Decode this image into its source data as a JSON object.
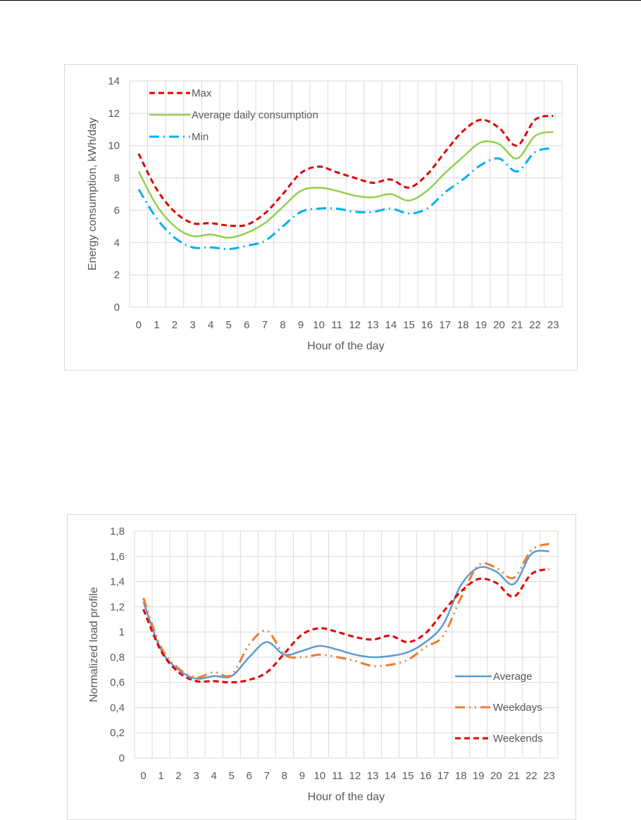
{
  "chart_data": [
    {
      "type": "line",
      "title": "",
      "xlabel": "Hour of the day",
      "ylabel": "Energy consumption, kWh/day",
      "x": [
        "0",
        "1",
        "2",
        "3",
        "4",
        "5",
        "6",
        "7",
        "8",
        "9",
        "10",
        "11",
        "12",
        "13",
        "14",
        "15",
        "16",
        "17",
        "18",
        "19",
        "20",
        "21",
        "22",
        "23"
      ],
      "ylim": [
        0,
        14
      ],
      "yticks": [
        0,
        2,
        4,
        6,
        8,
        10,
        12,
        14
      ],
      "ytick_labels": [
        "0",
        "2",
        "4",
        "6",
        "8",
        "10",
        "12",
        "14"
      ],
      "grid": true,
      "legend_position": "top-left",
      "series": [
        {
          "name": "Max",
          "color": "#e00000",
          "dash": "dashed",
          "values": [
            9.5,
            7.3,
            5.9,
            5.2,
            5.2,
            5.05,
            5.1,
            5.8,
            7.0,
            8.3,
            8.7,
            8.35,
            8.0,
            7.7,
            7.9,
            7.4,
            8.2,
            9.6,
            10.9,
            11.6,
            11.1,
            10.0,
            11.6,
            11.85
          ]
        },
        {
          "name": "Average daily consumption",
          "color": "#92d050",
          "dash": "solid",
          "values": [
            8.4,
            6.3,
            5.0,
            4.4,
            4.5,
            4.3,
            4.6,
            5.2,
            6.2,
            7.2,
            7.4,
            7.2,
            6.9,
            6.8,
            7.0,
            6.6,
            7.2,
            8.3,
            9.3,
            10.2,
            10.1,
            9.2,
            10.6,
            10.85
          ]
        },
        {
          "name": "Min",
          "color": "#00b0f0",
          "dash": "dashdot",
          "values": [
            7.3,
            5.5,
            4.3,
            3.7,
            3.7,
            3.6,
            3.8,
            4.1,
            5.0,
            5.9,
            6.1,
            6.1,
            5.9,
            5.9,
            6.1,
            5.8,
            6.1,
            7.1,
            7.9,
            8.8,
            9.2,
            8.4,
            9.6,
            9.85
          ]
        }
      ]
    },
    {
      "type": "line",
      "title": "",
      "xlabel": "Hour of the day",
      "ylabel": "Normalized load profile",
      "x": [
        "0",
        "1",
        "2",
        "3",
        "4",
        "5",
        "6",
        "7",
        "8",
        "9",
        "10",
        "11",
        "12",
        "13",
        "14",
        "15",
        "16",
        "17",
        "18",
        "19",
        "20",
        "21",
        "22",
        "23"
      ],
      "ylim": [
        0,
        1.8
      ],
      "yticks": [
        0,
        0.2,
        0.4,
        0.6,
        0.8,
        1.0,
        1.2,
        1.4,
        1.6,
        1.8
      ],
      "ytick_labels": [
        "0",
        "0,2",
        "0,4",
        "0,6",
        "0,8",
        "1",
        "1,2",
        "1,4",
        "1,6",
        "1,8"
      ],
      "grid": true,
      "legend_position": "right",
      "series": [
        {
          "name": "Average",
          "color": "#5b9bd5",
          "dash": "solid",
          "values": [
            1.24,
            0.86,
            0.7,
            0.63,
            0.65,
            0.65,
            0.8,
            0.92,
            0.82,
            0.85,
            0.89,
            0.86,
            0.82,
            0.8,
            0.81,
            0.84,
            0.92,
            1.06,
            1.37,
            1.51,
            1.48,
            1.38,
            1.62,
            1.64
          ]
        },
        {
          "name": "Weekdays",
          "color": "#ed7d31",
          "dash": "longdashdot",
          "values": [
            1.27,
            0.88,
            0.71,
            0.64,
            0.68,
            0.66,
            0.9,
            1.01,
            0.82,
            0.8,
            0.82,
            0.8,
            0.77,
            0.73,
            0.74,
            0.78,
            0.88,
            0.97,
            1.27,
            1.53,
            1.51,
            1.43,
            1.65,
            1.7
          ]
        },
        {
          "name": "Weekends",
          "color": "#e00000",
          "dash": "dashed",
          "values": [
            1.18,
            0.85,
            0.68,
            0.61,
            0.61,
            0.6,
            0.62,
            0.68,
            0.83,
            0.98,
            1.03,
            1.0,
            0.96,
            0.94,
            0.97,
            0.92,
            0.99,
            1.16,
            1.32,
            1.42,
            1.39,
            1.28,
            1.46,
            1.5
          ]
        }
      ]
    }
  ]
}
